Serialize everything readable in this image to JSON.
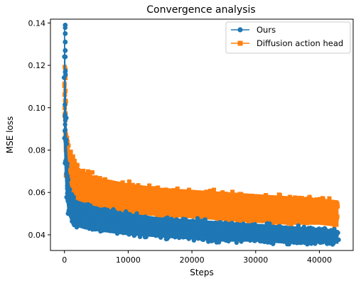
{
  "chart_data": {
    "type": "scatter",
    "title": "Convergence analysis",
    "xlabel": "Steps",
    "ylabel": "MSE loss",
    "xlim": [
      -2200,
      45300
    ],
    "ylim": [
      0.0326,
      0.1418
    ],
    "xticks": [
      0,
      10000,
      20000,
      30000,
      40000
    ],
    "yticks": [
      0.04,
      0.06,
      0.08,
      0.1,
      0.12,
      0.14
    ],
    "xtick_labels": [
      "0",
      "10000",
      "20000",
      "30000",
      "40000"
    ],
    "ytick_labels": [
      "0.04",
      "0.06",
      "0.08",
      "0.10",
      "0.12",
      "0.14"
    ],
    "grid": false,
    "legend_position": "top-right",
    "series": [
      {
        "name": "Diffusion action head",
        "color": "#ff7f0e",
        "marker": "square",
        "steps_max": 43000,
        "envelope": {
          "x": [
            0,
            100,
            300,
            600,
            1000,
            1500,
            2000,
            3000,
            5000,
            10000,
            15000,
            20000,
            25000,
            30000,
            35000,
            40000,
            43000
          ],
          "upper": [
            0.118,
            0.11,
            0.09,
            0.082,
            0.078,
            0.074,
            0.072,
            0.07,
            0.067,
            0.064,
            0.062,
            0.061,
            0.06,
            0.059,
            0.058,
            0.057,
            0.056
          ],
          "lower": [
            0.088,
            0.078,
            0.068,
            0.062,
            0.058,
            0.056,
            0.055,
            0.053,
            0.051,
            0.05,
            0.049,
            0.048,
            0.047,
            0.046,
            0.045,
            0.045,
            0.044
          ]
        }
      },
      {
        "name": "Ours",
        "color": "#1f77b4",
        "marker": "circle",
        "steps_max": 43000,
        "envelope": {
          "x": [
            0,
            100,
            300,
            600,
            1000,
            1500,
            2000,
            3000,
            5000,
            10000,
            15000,
            20000,
            25000,
            30000,
            35000,
            40000,
            43000
          ],
          "upper": [
            0.139,
            0.118,
            0.082,
            0.066,
            0.06,
            0.057,
            0.056,
            0.055,
            0.053,
            0.05,
            0.048,
            0.047,
            0.046,
            0.045,
            0.044,
            0.043,
            0.042
          ],
          "lower": [
            0.082,
            0.07,
            0.058,
            0.05,
            0.047,
            0.045,
            0.044,
            0.043,
            0.042,
            0.04,
            0.039,
            0.038,
            0.037,
            0.037,
            0.036,
            0.036,
            0.036
          ]
        }
      }
    ]
  }
}
